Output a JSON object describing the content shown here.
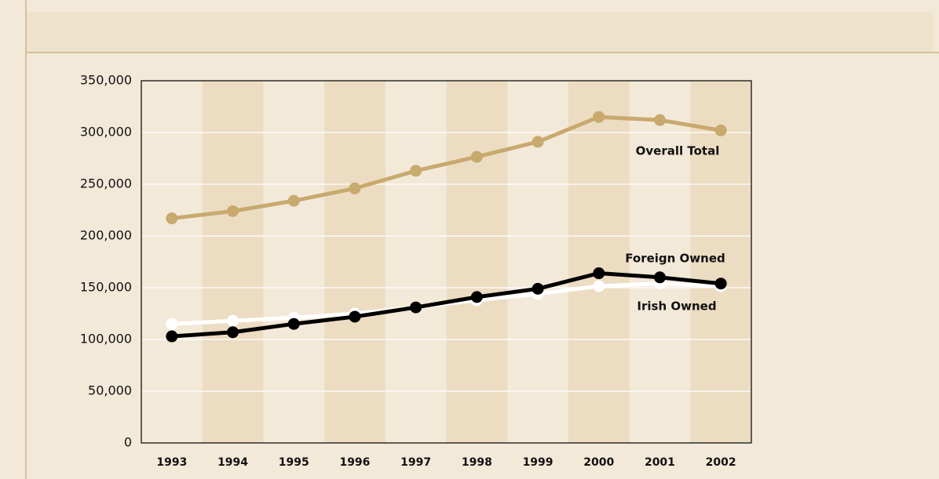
{
  "chart_data": {
    "type": "line",
    "categories": [
      "1993",
      "1994",
      "1995",
      "1996",
      "1997",
      "1998",
      "1999",
      "2000",
      "2001",
      "2002"
    ],
    "series": [
      {
        "name": "Overall Total",
        "color": "#c8a96e",
        "values": [
          217000,
          224000,
          234000,
          246000,
          263000,
          276500,
          291000,
          315000,
          312000,
          302000
        ]
      },
      {
        "name": "Irish Owned",
        "color": "#ffffff",
        "values": [
          115000,
          118000,
          121000,
          125000,
          131000,
          138000,
          144000,
          151500,
          154000,
          151500
        ]
      },
      {
        "name": "Foreign Owned",
        "color": "#000000",
        "values": [
          103000,
          107000,
          115000,
          122000,
          131000,
          141000,
          149000,
          164000,
          160000,
          154000
        ]
      }
    ],
    "ylim": [
      0,
      350000
    ],
    "yticks": [
      0,
      {
        "value": 50000,
        "label": "50,000"
      },
      {
        "value": 100000,
        "label": "100,000"
      },
      {
        "value": 150000,
        "label": "150,000"
      },
      {
        "value": 200000,
        "label": "200,000"
      },
      {
        "value": 250000,
        "label": "250,000"
      },
      {
        "value": 300000,
        "label": "300,000"
      },
      {
        "value": 350000,
        "label": "350,000"
      }
    ],
    "grid": true,
    "alternating_bands": true
  }
}
